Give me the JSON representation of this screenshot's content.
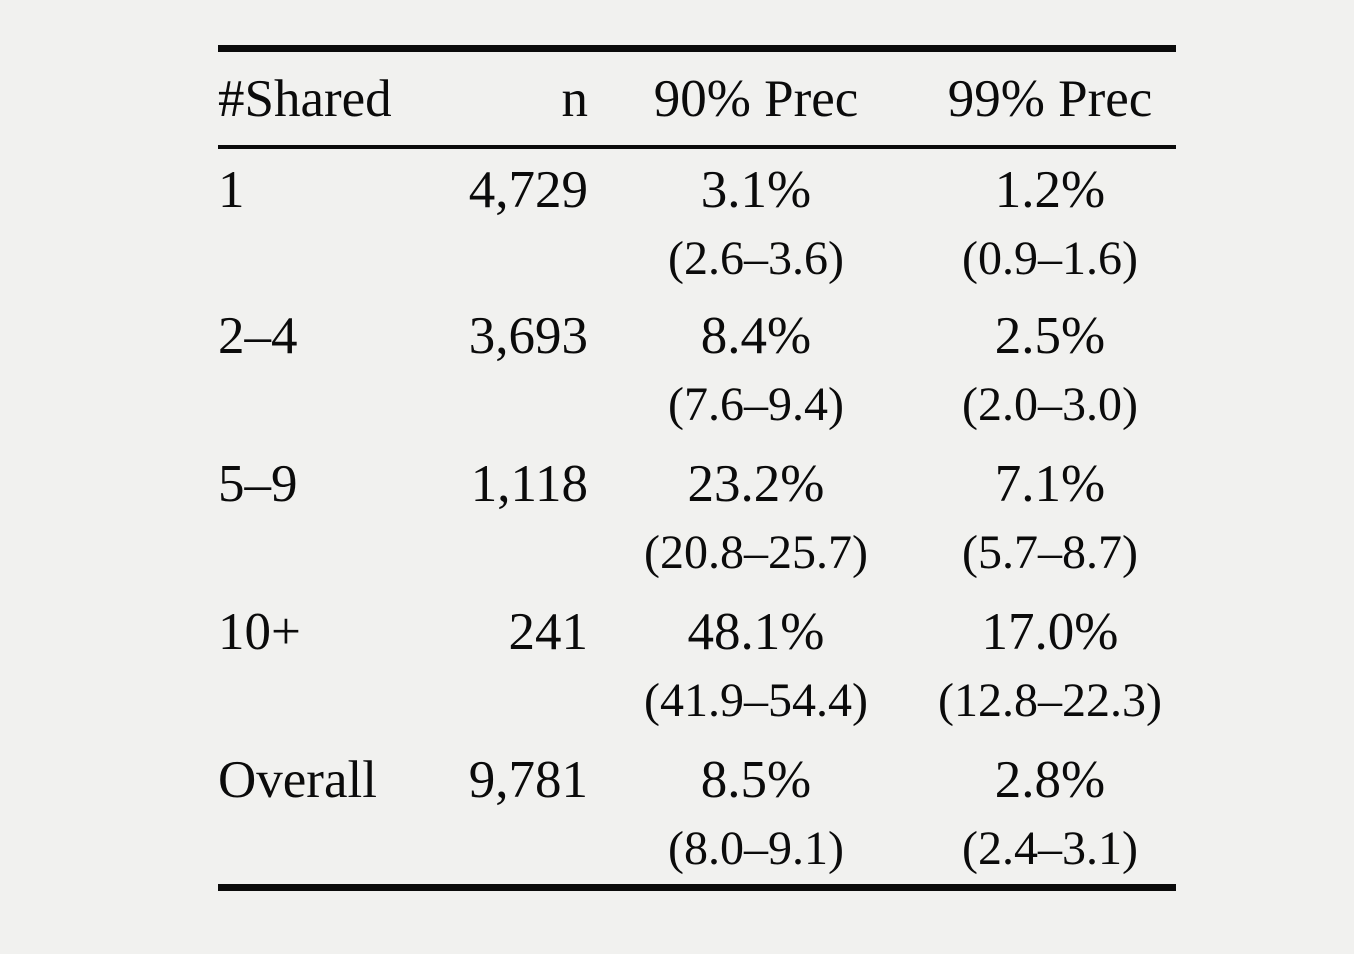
{
  "colors": {
    "background": "#f1f1ef",
    "text": "#0b0b0b",
    "rule": "#0b0b0b"
  },
  "table": {
    "headers": {
      "shared": "#Shared",
      "n": "n",
      "prec90": "90% Prec",
      "prec99": "99% Prec"
    },
    "rows": [
      {
        "shared": "1",
        "n": "4,729",
        "prec90": "3.1%",
        "prec90_ci": "(2.6–3.6)",
        "prec99": "1.2%",
        "prec99_ci": "(0.9–1.6)"
      },
      {
        "shared": "2–4",
        "n": "3,693",
        "prec90": "8.4%",
        "prec90_ci": "(7.6–9.4)",
        "prec99": "2.5%",
        "prec99_ci": "(2.0–3.0)"
      },
      {
        "shared": "5–9",
        "n": "1,118",
        "prec90": "23.2%",
        "prec90_ci": "(20.8–25.7)",
        "prec99": "7.1%",
        "prec99_ci": "(5.7–8.7)"
      },
      {
        "shared": "10+",
        "n": "241",
        "prec90": "48.1%",
        "prec90_ci": "(41.9–54.4)",
        "prec99": "17.0%",
        "prec99_ci": "(12.8–22.3)"
      },
      {
        "shared": "Overall",
        "n": "9,781",
        "prec90": "8.5%",
        "prec90_ci": "(8.0–9.1)",
        "prec99": "2.8%",
        "prec99_ci": "(2.4–3.1)"
      }
    ]
  }
}
